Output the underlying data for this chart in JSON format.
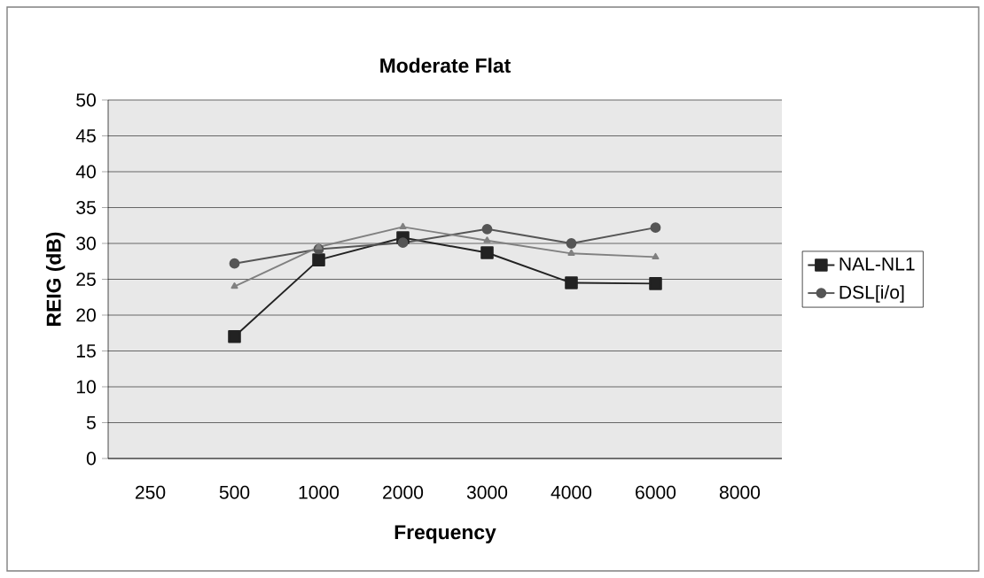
{
  "chart_data": {
    "type": "line",
    "title": "Moderate Flat",
    "xlabel": "Frequency",
    "ylabel": "REIG (dB)",
    "categories": [
      "250",
      "500",
      "1000",
      "2000",
      "3000",
      "4000",
      "6000",
      "8000"
    ],
    "series": [
      {
        "name": "NAL-NL1",
        "color": "#222222",
        "marker": "square",
        "values": [
          null,
          17,
          27.7,
          30.8,
          28.7,
          24.5,
          24.4,
          null
        ]
      },
      {
        "name": "DSL[i/o]",
        "color": "#555555",
        "marker": "circle",
        "values": [
          null,
          27.2,
          29.2,
          30.1,
          32.0,
          30,
          32.2,
          null
        ]
      },
      {
        "color": "#808080",
        "marker": "triangle",
        "values": [
          null,
          24.0,
          29.5,
          32.3,
          30.4,
          28.6,
          28.1,
          null
        ]
      }
    ],
    "ylim": [
      0,
      50
    ],
    "yticks": [
      0,
      5,
      10,
      15,
      20,
      25,
      30,
      35,
      40,
      45,
      50
    ],
    "grid": "y",
    "legend": "right",
    "line_style": "solid"
  }
}
